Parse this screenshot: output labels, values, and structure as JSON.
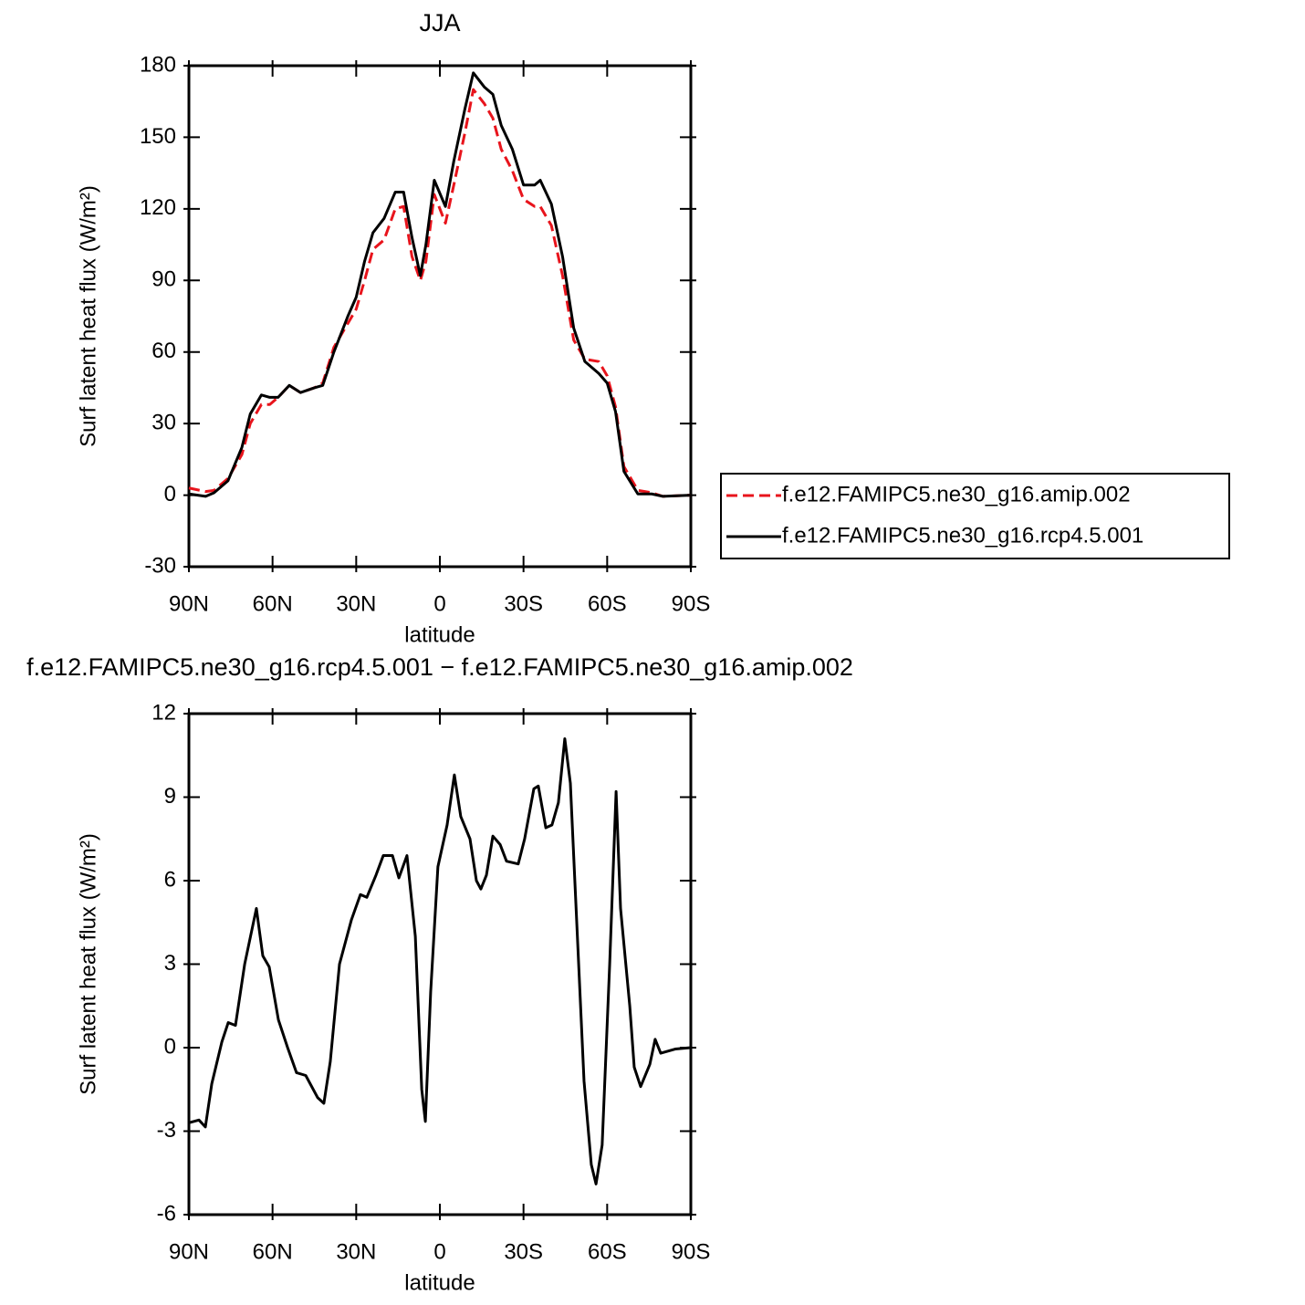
{
  "chart_data": [
    {
      "type": "line",
      "title": "JJA",
      "x_label": "latitude",
      "y_label": "Surf latent heat flux (W/m²)",
      "xlim": [
        90,
        -90
      ],
      "xticks": [
        {
          "value": 90,
          "label": "90N"
        },
        {
          "value": 60,
          "label": "60N"
        },
        {
          "value": 30,
          "label": "30N"
        },
        0,
        {
          "value": -30,
          "label": "30S"
        },
        {
          "value": -60,
          "label": "60S"
        },
        {
          "value": -90,
          "label": "90S"
        }
      ],
      "ylim": [
        -30,
        180
      ],
      "yticks": [
        -30,
        0,
        30,
        60,
        90,
        120,
        150,
        180
      ],
      "legend": "right",
      "x": [
        90,
        84,
        81,
        76,
        71,
        68,
        64,
        61,
        58,
        54,
        50,
        45,
        42,
        38,
        33,
        30,
        27,
        24,
        20,
        16,
        13,
        10,
        7,
        5,
        2,
        -2,
        -5,
        -9,
        -12,
        -16,
        -19,
        -22,
        -26,
        -30,
        -34,
        -36,
        -40,
        -44,
        -48,
        -52,
        -57,
        -60,
        -63,
        -66,
        -71,
        -76,
        -80,
        -90
      ],
      "series": [
        {
          "name": "f.e12.FAMIPC5.ne30_g16.amip.002",
          "color": "#e8141c",
          "style": "dashed",
          "values": [
            3,
            1.5,
            2,
            7,
            17,
            30,
            38,
            38,
            41,
            46,
            43,
            45,
            47,
            62,
            72,
            78,
            90,
            103,
            107,
            120,
            121,
            100,
            90,
            98,
            126,
            114,
            130,
            152,
            170,
            164,
            158,
            145,
            136,
            124,
            121,
            121,
            113,
            92,
            65,
            57,
            56,
            50,
            37,
            12,
            2,
            1,
            -0.5,
            0
          ]
        },
        {
          "name": "f.e12.FAMIPC5.ne30_g16.rcp4.5.001",
          "color": "#000000",
          "style": "solid",
          "values": [
            0.5,
            -0.5,
            1,
            6,
            20,
            34,
            42,
            41,
            41,
            46,
            43,
            45,
            46,
            60,
            75,
            83,
            98,
            110,
            116,
            127,
            127,
            108,
            92,
            105,
            132,
            121,
            140,
            162,
            177,
            171,
            168,
            155,
            145,
            130,
            130,
            132,
            122,
            100,
            70,
            56,
            51,
            47,
            35,
            10,
            0.5,
            0.5,
            -0.5,
            0
          ]
        }
      ]
    },
    {
      "type": "line",
      "title": "f.e12.FAMIPC5.ne30_g16.rcp4.5.001 − f.e12.FAMIPC5.ne30_g16.amip.002",
      "x_label": "latitude",
      "y_label": "Surf latent heat flux (W/m²)",
      "xlim": [
        90,
        -90
      ],
      "xticks": [
        {
          "value": 90,
          "label": "90N"
        },
        {
          "value": 60,
          "label": "60N"
        },
        {
          "value": 30,
          "label": "30N"
        },
        0,
        {
          "value": -30,
          "label": "30S"
        },
        {
          "value": -60,
          "label": "60S"
        },
        {
          "value": -90,
          "label": "90S"
        }
      ],
      "ylim": [
        -6,
        12
      ],
      "yticks": [
        -6,
        -3,
        0,
        3,
        6,
        9,
        12
      ],
      "color": "#000000",
      "x": [
        90,
        86.4,
        84.1,
        81.8,
        78.2,
        75.9,
        73.3,
        70,
        65.8,
        63.5,
        61.2,
        57.9,
        54.6,
        51.4,
        48.1,
        43.8,
        41.6,
        39.3,
        36,
        31.7,
        28.5,
        26.2,
        22.9,
        20.3,
        17,
        14.7,
        11.8,
        8.8,
        6.5,
        5.2,
        3.3,
        0.7,
        -2.6,
        -5.2,
        -7.5,
        -10.8,
        -13.1,
        -14.7,
        -16.7,
        -19,
        -21.6,
        -23.9,
        -28.1,
        -30.4,
        -33.7,
        -35.3,
        -38,
        -40.2,
        -42.5,
        -44.8,
        -46.8,
        -48.4,
        -51.7,
        -54.3,
        -56,
        -58.2,
        -60.9,
        -63.2,
        -64.8,
        -68.1,
        -69.7,
        -72,
        -75.3,
        -77.2,
        -79.2,
        -84.4,
        -90
      ],
      "values": [
        -2.7,
        -2.6,
        -2.85,
        -1.3,
        0.2,
        0.9,
        0.8,
        3,
        5,
        3.3,
        2.9,
        1,
        0,
        -0.9,
        -1,
        -1.8,
        -2,
        -0.5,
        3,
        4.6,
        5.5,
        5.4,
        6.2,
        6.9,
        6.9,
        6.1,
        6.9,
        4,
        -1.5,
        -2.65,
        2,
        6.5,
        8,
        9.8,
        8.3,
        7.5,
        6,
        5.7,
        6.2,
        7.6,
        7.3,
        6.7,
        6.6,
        7.5,
        9.3,
        9.4,
        7.9,
        8,
        8.8,
        11.1,
        9.5,
        6,
        -1.2,
        -4.2,
        -4.9,
        -3.5,
        3,
        9.2,
        5,
        1.5,
        -0.7,
        -1.4,
        -0.6,
        0.3,
        -0.2,
        -0.05,
        0
      ]
    }
  ]
}
